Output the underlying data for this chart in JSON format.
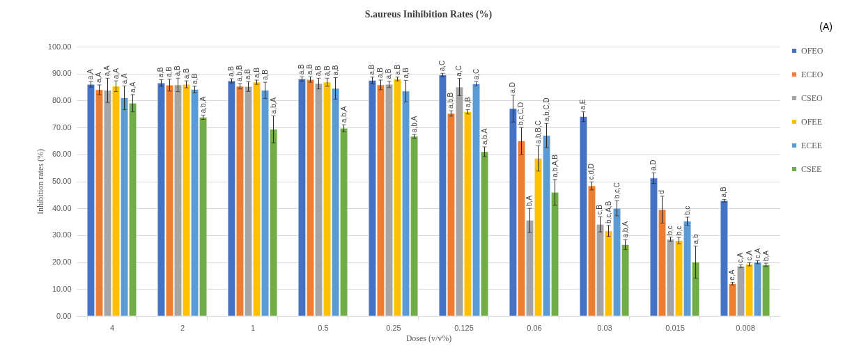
{
  "chart_data": {
    "type": "bar",
    "title": "S.aureus Inihibition Rates (%)",
    "xlabel": "Doses (v/v%)",
    "ylabel": "Inhibition rates (%)",
    "annotations": [
      "(A)"
    ],
    "categories": [
      "4",
      "2",
      "1",
      "0.5",
      "0.25",
      "0.125",
      "0.06",
      "0.03",
      "0.015",
      "0.008"
    ],
    "ylim": [
      0,
      100
    ],
    "yticks": [
      {
        "value": 0,
        "label": "0.00"
      },
      {
        "value": 10,
        "label": "10.00"
      },
      {
        "value": 20,
        "label": "20.00"
      },
      {
        "value": 30,
        "label": "30.00"
      },
      {
        "value": 40,
        "label": "40.00"
      },
      {
        "value": 50,
        "label": "50.00"
      },
      {
        "value": 60,
        "label": "60.00"
      },
      {
        "value": 70,
        "label": "70.00"
      },
      {
        "value": 80,
        "label": "80.00"
      },
      {
        "value": 90,
        "label": "90.00"
      },
      {
        "value": 100,
        "label": "100.00"
      }
    ],
    "grid": "y",
    "legend": "right",
    "series": [
      {
        "name": "OFEO",
        "color": "#4472c4",
        "values": [
          86,
          86.5,
          87.3,
          88,
          87.5,
          89.5,
          77,
          74,
          51.2,
          42.8
        ],
        "errors": [
          1,
          1.2,
          0.8,
          0.8,
          1.2,
          0.6,
          5,
          1.8,
          2,
          0.5
        ],
        "value_labels": [
          "a,A",
          "a,B",
          "a,B",
          "a,B",
          "a,B",
          "a,C",
          "a,D",
          "a,E",
          "a,D",
          "a,B"
        ]
      },
      {
        "name": "ECEO",
        "color": "#ed7d31",
        "values": [
          84,
          85.7,
          85.3,
          87.8,
          85.8,
          75.2,
          65,
          48.3,
          39.5,
          12
        ],
        "errors": [
          1.8,
          2.2,
          1,
          1,
          1.8,
          1,
          5,
          1.5,
          5,
          0.5
        ],
        "value_labels": [
          "a,A",
          "a,B",
          "a,b,B",
          "a,B",
          "a,B",
          "a,b,B",
          "b,c,C,D",
          "c,d,D",
          "d",
          "e,A"
        ]
      },
      {
        "name": "CSEO",
        "color": "#a5a5a5",
        "values": [
          83.8,
          85.8,
          85.2,
          86.3,
          86,
          85,
          35.5,
          34,
          28.5,
          18.5
        ],
        "errors": [
          4.5,
          2.5,
          1.8,
          2,
          1.2,
          3.2,
          4.5,
          2.8,
          0.8,
          0.5
        ],
        "value_labels": [
          "a,A",
          "a,B",
          "a,B",
          "a,B",
          "a,B",
          "a,C",
          "b,A",
          "c,B",
          "b,c",
          "c,A"
        ]
      },
      {
        "name": "OFEE",
        "color": "#ffc000",
        "values": [
          85.3,
          86,
          86.8,
          86.8,
          88,
          75.8,
          58.5,
          31.6,
          28,
          19.2
        ],
        "errors": [
          2,
          1.3,
          0.8,
          1.5,
          0.7,
          0.8,
          4.7,
          2,
          1.2,
          0.6
        ],
        "value_labels": [
          "a,A",
          "a,B",
          "a,B",
          "a,B",
          "a,B",
          "a,B",
          "a,b,B,C",
          "b,c,A,B",
          "b,c",
          "c,A"
        ]
      },
      {
        "name": "ECEE",
        "color": "#5b9bd5",
        "values": [
          81,
          84.1,
          83.8,
          84.5,
          83.5,
          86.2,
          67,
          40,
          35.2,
          20
        ],
        "errors": [
          4.4,
          1.2,
          3,
          4,
          4,
          0.8,
          4.5,
          2.8,
          1.5,
          0.6
        ],
        "value_labels": [
          "a,A",
          "a,B",
          "a,B",
          "a,B",
          "a,B",
          "a,C",
          "a,b,C,D",
          "b,c,C",
          "b,c",
          "c,A"
        ]
      },
      {
        "name": "CSEE",
        "color": "#70ad47",
        "values": [
          79,
          73.8,
          69.3,
          69.7,
          66.7,
          61,
          45.9,
          26.5,
          20,
          19
        ],
        "errors": [
          3.2,
          0.8,
          5,
          1.3,
          0.7,
          1.8,
          4.8,
          1.8,
          6,
          0.6
        ],
        "value_labels": [
          "a,A",
          "a,b,A",
          "a,b,A",
          "a,b,A",
          "a,b,A",
          "a,b,A",
          "a,b,A,B",
          "a,b,A",
          "a,b",
          "b,A"
        ]
      }
    ]
  }
}
